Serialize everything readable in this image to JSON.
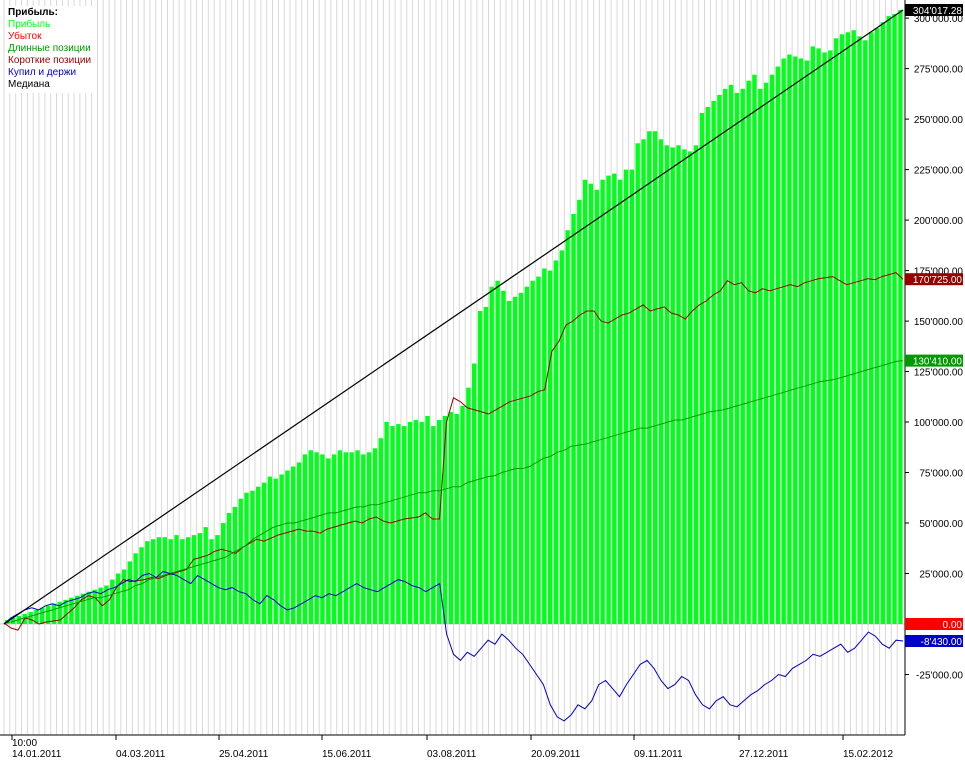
{
  "legend": {
    "title": "Прибыль:",
    "items": [
      {
        "label": "Прибыль",
        "color": "#00ff1a"
      },
      {
        "label": "Убыток",
        "color": "#ff0000"
      },
      {
        "label": "Длинные позиции",
        "color": "#009900"
      },
      {
        "label": "Короткие позиции",
        "color": "#990000"
      },
      {
        "label": "Купил и держи",
        "color": "#0000cc"
      },
      {
        "label": "Медиана",
        "color": "#000000"
      }
    ]
  },
  "chart_data": {
    "type": "bar",
    "time_label": "10:00",
    "x_tick_labels": [
      "14.01.2011",
      "04.03.2011",
      "25.04.2011",
      "15.06.2011",
      "03.08.2011",
      "20.09.2011",
      "09.11.2011",
      "27.12.2011",
      "15.02.2012"
    ],
    "y_tick_labels": [
      "-25'000.00",
      "25'000.00",
      "50'000.00",
      "75'000.00",
      "100'000.00",
      "125'000.00",
      "150'000.00",
      "175'000.00",
      "200'000.00",
      "225'000.00",
      "250'000.00",
      "275'000.00",
      "300'000.00"
    ],
    "y_ticks": [
      -25000,
      25000,
      50000,
      75000,
      100000,
      125000,
      150000,
      175000,
      200000,
      225000,
      250000,
      275000,
      300000
    ],
    "ylim": [
      -55000,
      308000
    ],
    "grid": true,
    "last_value_tags": [
      {
        "text": "304'017.28",
        "value": 304017.28,
        "bg": "#000000",
        "fg": "#ffffff"
      },
      {
        "text": "170'725.00",
        "value": 170725,
        "bg": "#990000",
        "fg": "#ffffff"
      },
      {
        "text": "130'410.00",
        "value": 130410,
        "bg": "#009900",
        "fg": "#ffffff"
      },
      {
        "text": "0.00",
        "value": 0,
        "bg": "#ff0000",
        "fg": "#ffffff"
      },
      {
        "text": "-8'430.00",
        "value": -8430,
        "bg": "#0000cc",
        "fg": "#ffffff"
      }
    ],
    "profit_bars": [
      2000,
      3000,
      4000,
      5000,
      6000,
      7000,
      8000,
      9000,
      10000,
      11000,
      12000,
      13000,
      14000,
      15000,
      16000,
      17000,
      18000,
      19000,
      22000,
      25000,
      27000,
      31000,
      35000,
      38000,
      41000,
      42000,
      43000,
      43000,
      42000,
      44000,
      42000,
      43000,
      44000,
      45000,
      48000,
      42000,
      44000,
      50000,
      55000,
      58000,
      62000,
      65000,
      66000,
      68000,
      70000,
      73000,
      72000,
      74000,
      76000,
      78000,
      80000,
      84000,
      86000,
      85000,
      84000,
      82000,
      84000,
      86000,
      85000,
      85000,
      86000,
      84000,
      85000,
      87000,
      92000,
      100000,
      98000,
      99000,
      98000,
      100000,
      101000,
      100000,
      103000,
      98000,
      101000,
      103000,
      105000,
      104000,
      108000,
      117000,
      129000,
      155000,
      157000,
      167000,
      170000,
      165000,
      160000,
      162000,
      164000,
      167000,
      170000,
      172000,
      176000,
      175000,
      180000,
      185000,
      195000,
      203000,
      210000,
      220000,
      218000,
      215000,
      220000,
      222000,
      223000,
      220000,
      225000,
      225000,
      238000,
      240000,
      244000,
      244000,
      240000,
      237000,
      236000,
      237000,
      235000,
      234000,
      237000,
      253000,
      256000,
      259000,
      262000,
      265000,
      267000,
      263000,
      265000,
      269000,
      272000,
      265000,
      268000,
      272000,
      276000,
      280000,
      282000,
      281000,
      280000,
      279000,
      286000,
      285000,
      283000,
      284000,
      290000,
      292000,
      293000,
      294000,
      291000,
      289000,
      293000,
      295000,
      298000,
      301000,
      302000,
      304017
    ],
    "loss_bars": [],
    "series": [
      {
        "name": "Короткие позиции",
        "color": "#990000",
        "values": [
          500,
          -2000,
          -3000,
          3000,
          2000,
          0,
          1000,
          1500,
          2000,
          5000,
          8000,
          12000,
          14000,
          13000,
          9000,
          12000,
          18000,
          22000,
          21000,
          21500,
          22000,
          23000,
          22500,
          24000,
          25000,
          26000,
          27000,
          32000,
          33000,
          34000,
          36000,
          37000,
          36000,
          35000,
          38000,
          40000,
          42000,
          41000,
          42500,
          44000,
          45000,
          46000,
          47000,
          46000,
          46000,
          45000,
          47000,
          48000,
          49000,
          50000,
          51000,
          50000,
          52000,
          53000,
          51000,
          50000,
          51000,
          52000,
          52500,
          53000,
          55000,
          52000,
          52000,
          100000,
          112000,
          110000,
          107000,
          106000,
          105000,
          104000,
          106000,
          108000,
          110000,
          111000,
          112000,
          113000,
          115000,
          116000,
          135000,
          140000,
          148000,
          150000,
          153000,
          155000,
          155000,
          150000,
          149000,
          151000,
          153000,
          154000,
          156000,
          158000,
          155000,
          156000,
          157000,
          154000,
          153000,
          151000,
          155000,
          158000,
          160000,
          163000,
          165000,
          170000,
          168000,
          169000,
          165000,
          164000,
          166000,
          165000,
          166000,
          167000,
          168000,
          167000,
          169000,
          170000,
          171000,
          171500,
          172000,
          170000,
          168000,
          169000,
          170000,
          171000,
          170500,
          172000,
          173000,
          174000,
          170725
        ]
      },
      {
        "name": "Длинные позиции",
        "color": "#009900",
        "values": [
          500,
          1000,
          2000,
          3000,
          4000,
          5000,
          6000,
          7000,
          8000,
          9000,
          10000,
          11000,
          12000,
          13000,
          13000,
          14000,
          15000,
          16000,
          17000,
          19000,
          20000,
          22000,
          23000,
          24000,
          25000,
          26000,
          27000,
          28000,
          29000,
          30000,
          31000,
          32000,
          33000,
          35000,
          37000,
          39000,
          42000,
          44000,
          46000,
          48000,
          49000,
          50000,
          50000,
          51000,
          52000,
          53000,
          54000,
          55000,
          55000,
          56000,
          57000,
          58000,
          58000,
          59000,
          59000,
          60000,
          61000,
          62000,
          63000,
          64000,
          65000,
          65000,
          66000,
          66000,
          67000,
          68000,
          68000,
          70000,
          71000,
          72000,
          73000,
          73500,
          75000,
          76000,
          77000,
          77000,
          78000,
          80000,
          82000,
          83000,
          85000,
          86000,
          88000,
          88500,
          89000,
          90000,
          91000,
          92000,
          93000,
          94000,
          95000,
          96000,
          97000,
          97000,
          98000,
          99000,
          100000,
          101000,
          101000,
          102000,
          103000,
          104000,
          105000,
          105500,
          106000,
          107000,
          108000,
          109000,
          110000,
          111000,
          112000,
          113000,
          114000,
          115000,
          116000,
          117000,
          118000,
          119000,
          120000,
          120500,
          121000,
          122000,
          123000,
          124000,
          125000,
          126000,
          127000,
          128000,
          129000,
          130000,
          130410
        ]
      },
      {
        "name": "Купил и держи",
        "color": "#0000cc",
        "values": [
          0,
          3000,
          5000,
          7000,
          8000,
          7000,
          9000,
          10000,
          9000,
          11000,
          12000,
          13000,
          15000,
          16000,
          15000,
          17000,
          18000,
          20000,
          22000,
          21000,
          24000,
          25000,
          23000,
          26000,
          25000,
          24000,
          22000,
          20000,
          24000,
          22000,
          20000,
          18000,
          17000,
          18000,
          16000,
          15000,
          12000,
          10000,
          14000,
          12000,
          9000,
          7000,
          8000,
          10000,
          12000,
          14000,
          13000,
          15000,
          14000,
          16000,
          18000,
          20000,
          18000,
          17000,
          16000,
          18000,
          20000,
          22000,
          21000,
          19000,
          18000,
          16000,
          18000,
          20000,
          -5000,
          -15000,
          -18000,
          -14000,
          -16000,
          -12000,
          -8000,
          -10000,
          -5000,
          -8000,
          -12000,
          -15000,
          -20000,
          -25000,
          -30000,
          -40000,
          -46000,
          -48000,
          -45000,
          -40000,
          -42000,
          -38000,
          -30000,
          -28000,
          -32000,
          -36000,
          -30000,
          -25000,
          -20000,
          -18000,
          -22000,
          -28000,
          -32000,
          -30000,
          -26000,
          -28000,
          -35000,
          -40000,
          -42000,
          -38000,
          -36000,
          -40000,
          -41000,
          -38000,
          -35000,
          -33000,
          -30000,
          -28000,
          -25000,
          -26000,
          -22000,
          -20000,
          -18000,
          -15000,
          -16000,
          -14000,
          -12000,
          -10000,
          -14000,
          -12000,
          -8000,
          -4000,
          -6000,
          -10000,
          -12000,
          -8000,
          -8430
        ]
      },
      {
        "name": "Медиана",
        "color": "#000000",
        "values": [
          0,
          304017.28
        ]
      }
    ]
  }
}
